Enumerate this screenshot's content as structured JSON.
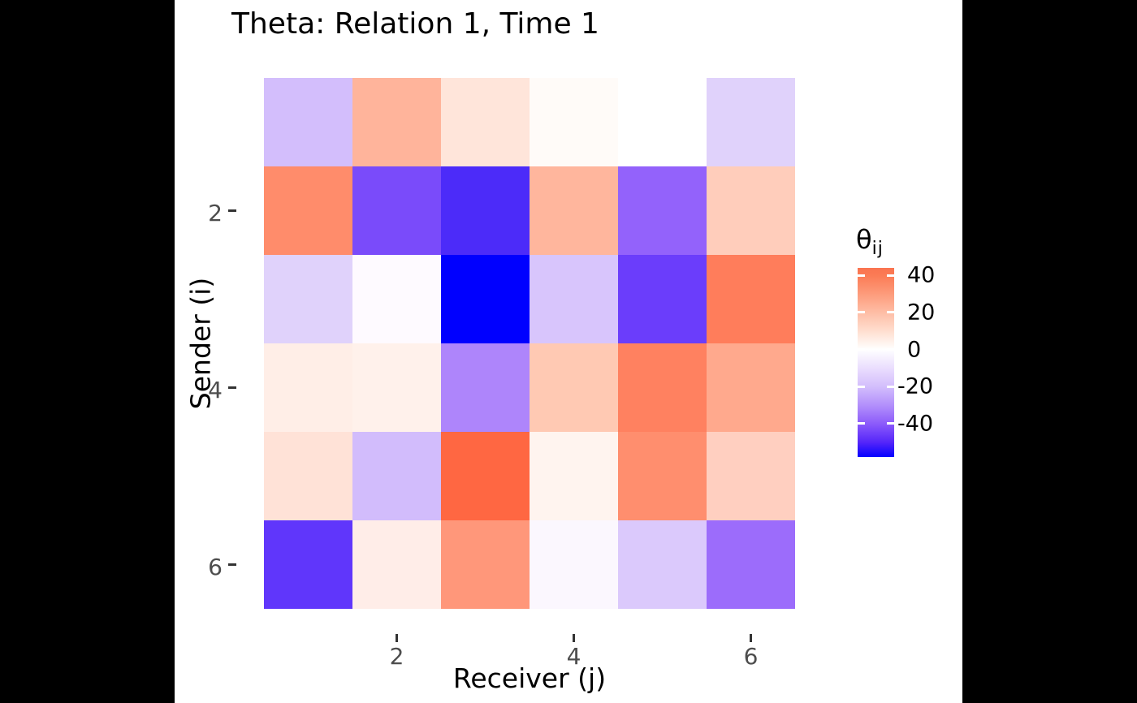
{
  "title": "Theta: Relation 1, Time 1",
  "axes": {
    "x_title": "Receiver (j)",
    "y_title": "Sender (i)",
    "x_ticks": [
      "2",
      "4",
      "6"
    ],
    "y_ticks": [
      "2",
      "4",
      "6"
    ]
  },
  "legend": {
    "title_symbol": "θ",
    "title_subscript": "ij",
    "tick_labels": [
      "40",
      "20",
      "0",
      "-20",
      "-40"
    ],
    "tick_values": [
      40,
      20,
      0,
      -20,
      -40
    ]
  },
  "chart_data": {
    "type": "heatmap",
    "title": "Theta: Relation 1, Time 1",
    "xlabel": "Receiver (j)",
    "ylabel": "Sender (i)",
    "x": [
      1,
      2,
      3,
      4,
      5,
      6
    ],
    "y": [
      1,
      2,
      3,
      4,
      5,
      6
    ],
    "legend_title": "theta_ij",
    "colorscale": {
      "low": "#0000FF",
      "mid": "#FFFFFF",
      "high_displayed": "#FA7450",
      "midpoint": 0,
      "domain": [
        -58,
        44
      ],
      "ticks": [
        40,
        20,
        0,
        -20,
        -40
      ]
    },
    "values": [
      [
        -16,
        22,
        8,
        1,
        0,
        -12
      ],
      [
        33,
        -44,
        -50,
        22,
        -37,
        15
      ],
      [
        -12,
        -1,
        -58,
        -15,
        -46,
        37
      ],
      [
        5,
        4,
        -30,
        16,
        36,
        25
      ],
      [
        9,
        -17,
        44,
        3,
        32,
        14
      ],
      [
        -47,
        5,
        31,
        -2,
        -14,
        -35
      ]
    ],
    "cell_colors": [
      [
        "#D3BEFC",
        "#FFB49B",
        "#FFE5DA",
        "#FFFBF8",
        "#FFFFFF",
        "#E0D2FB"
      ],
      [
        "#FF8C6B",
        "#7A4BFA",
        "#4C2BF9",
        "#FFB69D",
        "#9362FB",
        "#FFCDBB"
      ],
      [
        "#E0D2FB",
        "#FEFAFF",
        "#0000FF",
        "#D8C5FC",
        "#6B3DFB",
        "#FF7D5B"
      ],
      [
        "#FFEEE7",
        "#FFF1EB",
        "#AE85FB",
        "#FFC9B3",
        "#FF8160",
        "#FFA98D"
      ],
      [
        "#FFE2D7",
        "#D2BCFC",
        "#FF6742",
        "#FFF4EF",
        "#FF8E6E",
        "#FFCFC0"
      ],
      [
        "#6036FB",
        "#FFEDE8",
        "#FF977A",
        "#FBF7FE",
        "#DBC9FC",
        "#9C6CFB"
      ]
    ],
    "legend_gradient": [
      [
        44,
        "#FA7450"
      ],
      [
        40,
        "#FB7B55"
      ],
      [
        30,
        "#FD9B7B"
      ],
      [
        20,
        "#FEBDA5"
      ],
      [
        10,
        "#FFDECF"
      ],
      [
        0,
        "#FFFFFF"
      ],
      [
        -10,
        "#EADEFE"
      ],
      [
        -20,
        "#D3BEFC"
      ],
      [
        -30,
        "#B390FB"
      ],
      [
        -40,
        "#8C5BFA"
      ],
      [
        -50,
        "#5526F9"
      ],
      [
        -58,
        "#0500FF"
      ]
    ]
  }
}
